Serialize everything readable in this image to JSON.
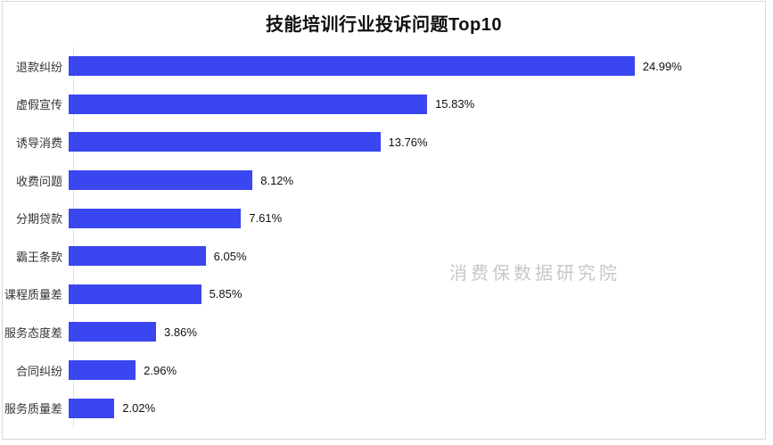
{
  "chart_data": {
    "type": "bar",
    "orientation": "horizontal",
    "title": "技能培训行业投诉问题Top10",
    "categories": [
      "退款纠纷",
      "虚假宣传",
      "诱导消费",
      "收费问题",
      "分期贷款",
      "霸王条款",
      "课程质量差",
      "服务态度差",
      "合同纠纷",
      "服务质量差"
    ],
    "values": [
      24.99,
      15.83,
      13.76,
      8.12,
      7.61,
      6.05,
      5.85,
      3.86,
      2.96,
      2.02
    ],
    "value_labels": [
      "24.99%",
      "15.83%",
      "13.76%",
      "8.12%",
      "7.61%",
      "6.05%",
      "5.85%",
      "3.86%",
      "2.96%",
      "2.02%"
    ],
    "xlabel": "",
    "ylabel": "",
    "xlim": [
      0,
      30.5
    ],
    "grid": false,
    "legend_position": "none",
    "bar_color": "#3a46f0",
    "axis_line_color": "#e0e0e0"
  },
  "watermark": "消费保数据研究院",
  "frame_border_color": "#d9d9d9"
}
